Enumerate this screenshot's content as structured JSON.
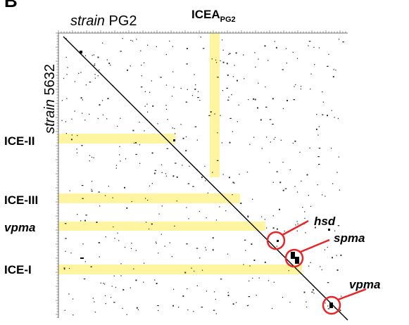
{
  "panel_label": "B",
  "axes": {
    "x_label_italic": "strain",
    "x_label_plain": "PG2",
    "y_label_italic": "strain",
    "y_label_plain": "5632"
  },
  "top_region": {
    "main": "ICEA",
    "subscript": "PG2"
  },
  "row_regions": [
    {
      "label": "ICE-II",
      "italic": false
    },
    {
      "label": "ICE-III",
      "italic": false
    },
    {
      "label": "vpma",
      "italic": true
    },
    {
      "label": "ICE-I",
      "italic": false
    }
  ],
  "callouts": [
    {
      "label": "hsd"
    },
    {
      "label": "spma"
    },
    {
      "label": "vpma"
    }
  ],
  "colors": {
    "highlight": "#fff5a0",
    "circle": "#e8262a",
    "ink": "#000000"
  }
}
